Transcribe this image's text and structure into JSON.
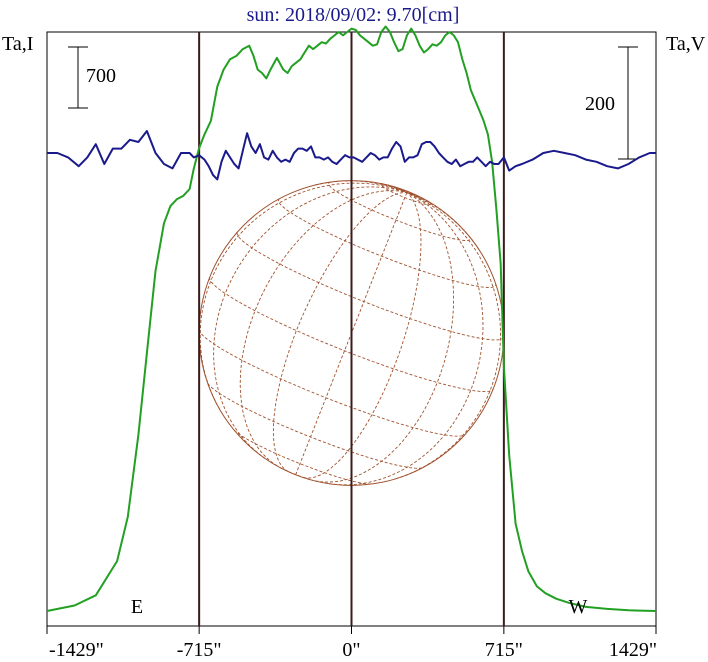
{
  "chart_data": {
    "type": "line",
    "title": "sun: 2018/09/02: 9.70[cm]",
    "left_axis_label": "Ta,I",
    "right_axis_label": "Ta,V",
    "scale_left_label": "700",
    "scale_right_label": "200",
    "east_label": "E",
    "west_label": "W",
    "xlim": [
      -1429,
      1429
    ],
    "x_ticks": [
      -1429,
      -715,
      0,
      715,
      1429
    ],
    "x_tick_labels": [
      "-1429\"",
      "-715\"",
      "0\"",
      "715\"",
      "1429\""
    ],
    "vertical_markers": [
      -715,
      0,
      715
    ],
    "disk_radius": 715,
    "colors": {
      "intensity": "#22a022",
      "polarization": "#1a1a8c",
      "grid": "#a0522d",
      "markers": "#3a1a1a",
      "title": "#1a1a8c"
    },
    "series": [
      {
        "name": "Ta,I",
        "axis": "left",
        "ylim": [
          -0.2,
          8.5
        ],
        "x": [
          -1429,
          -1300,
          -1200,
          -1100,
          -1050,
          -1000,
          -960,
          -920,
          -880,
          -850,
          -820,
          -790,
          -760,
          -740,
          -715,
          -690,
          -660,
          -630,
          -600,
          -570,
          -540,
          -510,
          -480,
          -460,
          -440,
          -420,
          -400,
          -380,
          -350,
          -320,
          -300,
          -280,
          -260,
          -240,
          -220,
          -200,
          -180,
          -160,
          -140,
          -120,
          -100,
          -80,
          -60,
          -40,
          -20,
          0,
          20,
          40,
          60,
          80,
          100,
          120,
          140,
          160,
          180,
          200,
          220,
          240,
          260,
          280,
          300,
          320,
          340,
          360,
          380,
          400,
          420,
          440,
          460,
          480,
          500,
          520,
          540,
          560,
          580,
          600,
          620,
          640,
          660,
          680,
          700,
          715,
          740,
          770,
          800,
          830,
          870,
          910,
          960,
          1020,
          1100,
          1200,
          1300,
          1429
        ],
        "y": [
          0.02,
          0.1,
          0.25,
          0.75,
          1.4,
          2.6,
          3.8,
          5.0,
          5.7,
          5.95,
          6.05,
          6.1,
          6.2,
          6.5,
          6.8,
          7.0,
          7.2,
          7.7,
          7.95,
          8.1,
          8.15,
          8.25,
          8.3,
          8.15,
          7.95,
          7.9,
          7.82,
          7.95,
          8.12,
          7.95,
          7.9,
          8.0,
          8.05,
          8.1,
          8.2,
          8.3,
          8.25,
          8.3,
          8.35,
          8.33,
          8.4,
          8.45,
          8.5,
          8.45,
          8.5,
          8.55,
          8.53,
          8.45,
          8.4,
          8.35,
          8.3,
          8.32,
          8.5,
          8.58,
          8.5,
          8.35,
          8.22,
          8.25,
          8.45,
          8.55,
          8.45,
          8.3,
          8.2,
          8.25,
          8.32,
          8.3,
          8.35,
          8.45,
          8.5,
          8.45,
          8.35,
          8.1,
          7.9,
          7.65,
          7.5,
          7.35,
          7.2,
          7.0,
          6.6,
          5.9,
          5.1,
          3.6,
          2.3,
          1.3,
          0.9,
          0.6,
          0.38,
          0.28,
          0.2,
          0.14,
          0.08,
          0.05,
          0.03,
          0.02
        ]
      },
      {
        "name": "Ta,V",
        "axis": "right",
        "ylim": [
          -2.15,
          0.55
        ],
        "x": [
          -1429,
          -1380,
          -1330,
          -1280,
          -1240,
          -1200,
          -1160,
          -1120,
          -1080,
          -1040,
          -1000,
          -960,
          -920,
          -880,
          -840,
          -800,
          -760,
          -740,
          -715,
          -690,
          -670,
          -650,
          -630,
          -610,
          -590,
          -570,
          -550,
          -530,
          -510,
          -490,
          -470,
          -450,
          -430,
          -410,
          -390,
          -370,
          -350,
          -330,
          -310,
          -290,
          -270,
          -250,
          -230,
          -210,
          -190,
          -170,
          -150,
          -130,
          -110,
          -90,
          -70,
          -50,
          -30,
          -10,
          10,
          30,
          50,
          70,
          90,
          110,
          130,
          150,
          170,
          190,
          210,
          230,
          250,
          270,
          290,
          310,
          330,
          350,
          370,
          390,
          410,
          430,
          450,
          470,
          490,
          510,
          530,
          550,
          570,
          590,
          610,
          630,
          650,
          670,
          690,
          715,
          740,
          770,
          800,
          850,
          900,
          950,
          1000,
          1050,
          1100,
          1150,
          1200,
          1250,
          1300,
          1350,
          1400,
          1429
        ],
        "y": [
          0,
          0,
          -0.02,
          -0.06,
          -0.02,
          0.04,
          -0.05,
          0.02,
          0.02,
          0.06,
          0.05,
          0.1,
          0,
          -0.05,
          -0.07,
          0,
          0,
          -0.02,
          -0.01,
          -0.03,
          -0.06,
          -0.1,
          -0.12,
          -0.04,
          0.01,
          -0.02,
          -0.05,
          -0.07,
          0.01,
          0.09,
          0.03,
          0,
          0.04,
          -0.02,
          -0.03,
          0.01,
          -0.02,
          -0.04,
          -0.03,
          -0.04,
          0,
          0.02,
          0.02,
          0.01,
          0.03,
          -0.02,
          -0.02,
          -0.03,
          -0.02,
          -0.04,
          -0.05,
          -0.03,
          -0.01,
          -0.02,
          -0.02,
          -0.03,
          -0.04,
          -0.02,
          0,
          -0.01,
          -0.03,
          -0.02,
          -0.02,
          0.02,
          0.05,
          0.03,
          -0.04,
          -0.02,
          -0.02,
          -0.01,
          0.04,
          0.05,
          0.05,
          0.03,
          0,
          -0.02,
          -0.04,
          -0.05,
          -0.03,
          -0.06,
          -0.05,
          -0.04,
          -0.04,
          -0.02,
          -0.04,
          -0.06,
          -0.04,
          -0.05,
          -0.05,
          -0.02,
          -0.08,
          -0.06,
          -0.05,
          -0.03,
          0,
          0.01,
          0,
          -0.01,
          -0.03,
          -0.04,
          -0.06,
          -0.07,
          -0.05,
          -0.02,
          0,
          0
        ]
      }
    ]
  }
}
